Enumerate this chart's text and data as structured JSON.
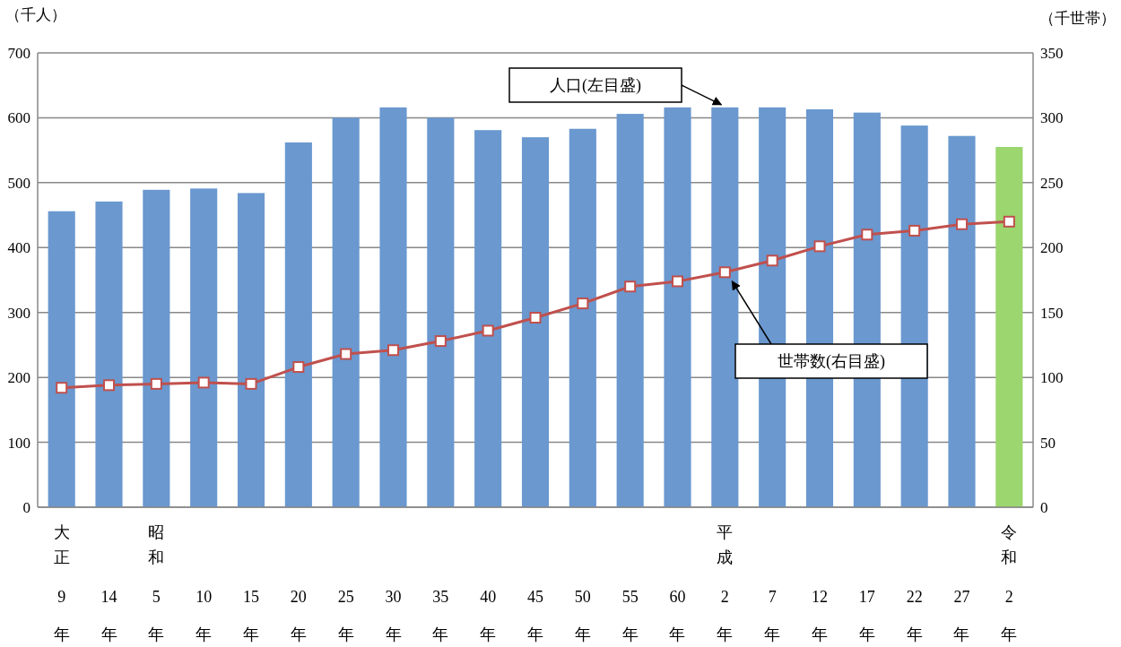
{
  "chart_data": {
    "type": "bar",
    "categories": [
      "大正9年",
      "14年",
      "昭和5年",
      "10年",
      "15年",
      "20年",
      "25年",
      "30年",
      "35年",
      "40年",
      "45年",
      "50年",
      "55年",
      "60年",
      "平成2年",
      "7年",
      "12年",
      "17年",
      "22年",
      "27年",
      "令和2年"
    ],
    "series": [
      {
        "colors": [
          "#6a98cf",
          "#6a98cf",
          "#6a98cf",
          "#6a98cf",
          "#6a98cf",
          "#6a98cf",
          "#6a98cf",
          "#6a98cf",
          "#6a98cf",
          "#6a98cf",
          "#6a98cf",
          "#6a98cf",
          "#6a98cf",
          "#6a98cf",
          "#6a98cf",
          "#6a98cf",
          "#6a98cf",
          "#6a98cf",
          "#6a98cf",
          "#6a98cf",
          "#9bd66e"
        ],
        "values": [
          456,
          471,
          489,
          491,
          484,
          562,
          600,
          616,
          600,
          581,
          570,
          583,
          606,
          616,
          616,
          616,
          613,
          608,
          588,
          572,
          555
        ]
      },
      {
        "type": "line",
        "axis": "y2",
        "color": "#c0504d",
        "marker": "square",
        "values": [
          92,
          94,
          95,
          96,
          95,
          108,
          118,
          121,
          128,
          136,
          146,
          157,
          170,
          174,
          181,
          190,
          201,
          210,
          213,
          218,
          220
        ]
      }
    ],
    "ylabel": "（千人）",
    "y2label": "（千世帯）",
    "ylim": [
      0,
      700
    ],
    "yticks": [
      0,
      100,
      200,
      300,
      400,
      500,
      600,
      700
    ],
    "y2lim": [
      0,
      350
    ],
    "y2ticks": [
      0,
      50,
      100,
      150,
      200,
      250,
      300,
      350
    ],
    "grid": "y",
    "annotations": [
      "人口(左目盛)",
      "世帯数(右目盛)"
    ]
  }
}
